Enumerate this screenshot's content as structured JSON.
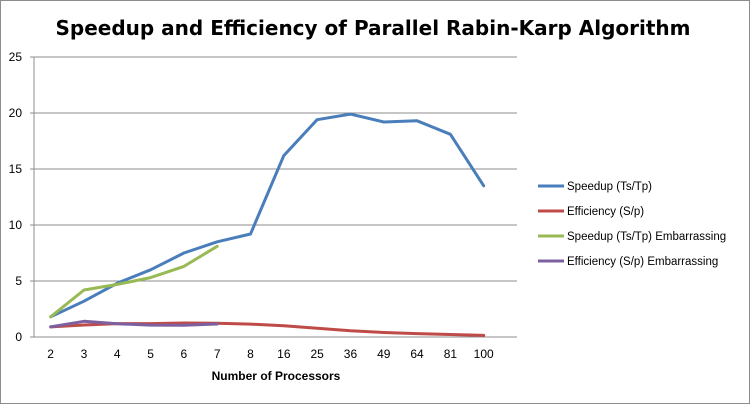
{
  "chart_data": {
    "type": "line",
    "title": "Speedup and Efficiency of Parallel Rabin-Karp Algorithm",
    "xlabel": "Number of Processors",
    "ylabel": "",
    "categories": [
      "2",
      "3",
      "4",
      "5",
      "6",
      "7",
      "8",
      "16",
      "25",
      "36",
      "49",
      "64",
      "81",
      "100"
    ],
    "ylim": [
      0,
      25
    ],
    "yticks": [
      "0",
      "5",
      "10",
      "15",
      "20",
      "25"
    ],
    "grid": true,
    "legend_position": "right",
    "series": [
      {
        "name": "Speedup (Ts/Tp)",
        "color": "#4a7ebb",
        "values": [
          1.8,
          3.2,
          4.8,
          6.0,
          7.5,
          8.5,
          9.2,
          16.2,
          19.4,
          19.9,
          19.2,
          19.3,
          18.1,
          13.5
        ]
      },
      {
        "name": "Efficiency (S/p)",
        "color": "#be4b48",
        "values": [
          0.9,
          1.07,
          1.2,
          1.2,
          1.25,
          1.22,
          1.15,
          1.01,
          0.78,
          0.55,
          0.4,
          0.3,
          0.22,
          0.14
        ]
      },
      {
        "name": "Speedup (Ts/Tp)  Embarrassing",
        "color": "#98b954",
        "values": [
          1.8,
          4.2,
          4.7,
          5.3,
          6.3,
          8.1,
          null,
          null,
          null,
          null,
          null,
          null,
          null,
          null
        ]
      },
      {
        "name": "Efficiency (S/p) Embarrassing",
        "color": "#7d60a0",
        "values": [
          0.9,
          1.4,
          1.18,
          1.06,
          1.05,
          1.16,
          null,
          null,
          null,
          null,
          null,
          null,
          null,
          null
        ]
      }
    ]
  }
}
